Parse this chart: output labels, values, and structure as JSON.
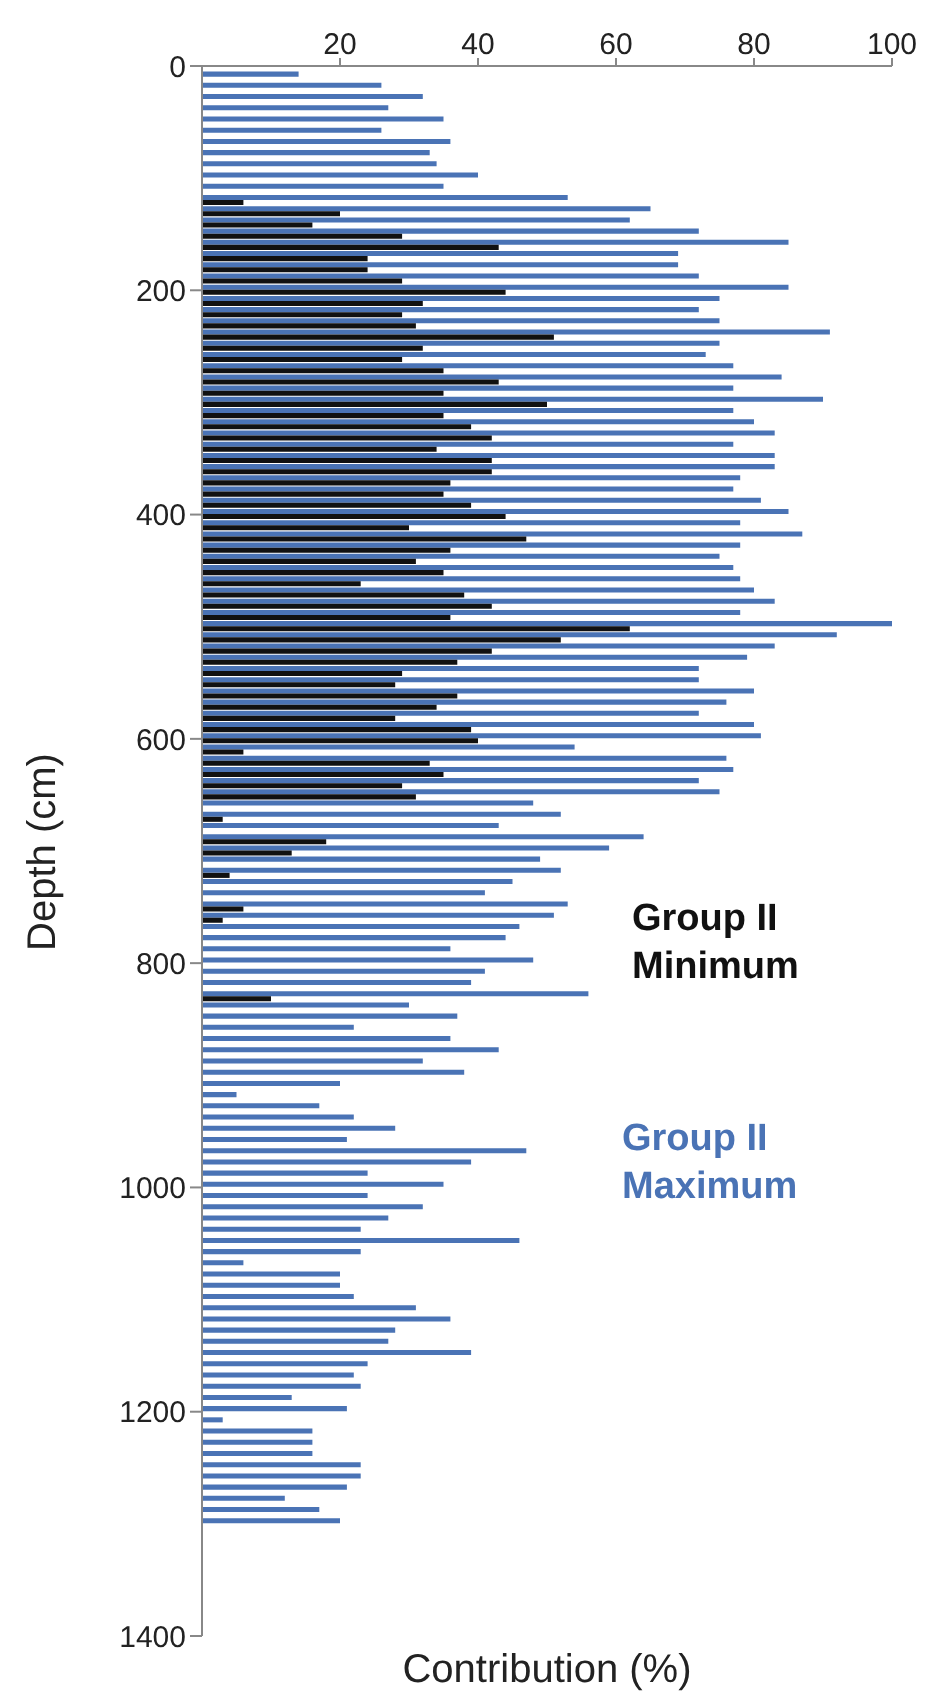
{
  "chart_data": {
    "type": "bar",
    "orientation": "horizontal",
    "xlabel": "Contribution (%)",
    "ylabel": "Depth (cm)",
    "x": [
      10,
      20,
      30,
      40,
      50,
      60,
      70,
      80,
      90,
      100,
      110,
      120,
      130,
      140,
      150,
      160,
      170,
      180,
      190,
      200,
      210,
      220,
      230,
      240,
      250,
      260,
      270,
      280,
      290,
      300,
      310,
      320,
      330,
      340,
      350,
      360,
      370,
      380,
      390,
      400,
      410,
      420,
      430,
      440,
      450,
      460,
      470,
      480,
      490,
      500,
      510,
      520,
      530,
      540,
      550,
      560,
      570,
      580,
      590,
      600,
      610,
      620,
      630,
      640,
      650,
      660,
      670,
      680,
      690,
      700,
      710,
      720,
      730,
      740,
      750,
      760,
      770,
      780,
      790,
      800,
      810,
      820,
      830,
      840,
      850,
      860,
      870,
      880,
      890,
      900,
      910,
      920,
      930,
      940,
      950,
      960,
      970,
      980,
      990,
      1000,
      1010,
      1020,
      1030,
      1040,
      1050,
      1060,
      1070,
      1080,
      1090,
      1100,
      1110,
      1120,
      1130,
      1140,
      1150,
      1160,
      1170,
      1180,
      1190,
      1200,
      1210,
      1220,
      1230,
      1240,
      1250,
      1260,
      1270,
      1280,
      1290,
      1300
    ],
    "series": [
      {
        "name": "Group II Maximum",
        "color": "#4a73b5",
        "values": [
          14,
          26,
          32,
          27,
          35,
          26,
          36,
          33,
          34,
          40,
          35,
          53,
          65,
          62,
          72,
          85,
          69,
          69,
          72,
          85,
          75,
          72,
          75,
          91,
          75,
          73,
          77,
          84,
          77,
          90,
          77,
          80,
          83,
          77,
          83,
          83,
          78,
          77,
          81,
          85,
          78,
          87,
          78,
          75,
          77,
          78,
          80,
          83,
          78,
          100,
          92,
          83,
          79,
          72,
          72,
          80,
          76,
          72,
          80,
          81,
          54,
          76,
          77,
          72,
          75,
          48,
          52,
          43,
          64,
          59,
          49,
          52,
          45,
          41,
          53,
          51,
          46,
          44,
          36,
          48,
          41,
          39,
          56,
          30,
          37,
          22,
          36,
          43,
          32,
          38,
          20,
          5,
          17,
          22,
          28,
          21,
          47,
          39,
          24,
          35,
          24,
          32,
          27,
          23,
          46,
          23,
          6,
          20,
          20,
          22,
          31,
          36,
          28,
          27,
          39,
          24,
          22,
          23,
          13,
          21,
          3,
          16,
          16,
          16,
          23,
          23,
          21,
          12,
          17,
          20
        ]
      },
      {
        "name": "Group II Minimum",
        "color": "#111111",
        "values": [
          null,
          null,
          null,
          null,
          null,
          null,
          null,
          null,
          null,
          null,
          null,
          6,
          20,
          16,
          29,
          43,
          24,
          24,
          29,
          44,
          32,
          29,
          31,
          51,
          32,
          29,
          35,
          43,
          35,
          50,
          35,
          39,
          42,
          34,
          42,
          42,
          36,
          35,
          39,
          44,
          30,
          47,
          36,
          31,
          35,
          23,
          38,
          42,
          36,
          62,
          52,
          42,
          37,
          29,
          28,
          37,
          34,
          28,
          39,
          40,
          6,
          33,
          35,
          29,
          31,
          null,
          3,
          null,
          18,
          13,
          null,
          4,
          null,
          null,
          6,
          3,
          null,
          null,
          null,
          null,
          null,
          null,
          10,
          null,
          null,
          null,
          null,
          null,
          null,
          null,
          null,
          null,
          null,
          null,
          null,
          null,
          null,
          null,
          null,
          null,
          null,
          null,
          null,
          null,
          null,
          null,
          null,
          null,
          null,
          null,
          null,
          null,
          null,
          null,
          null,
          null,
          null,
          null,
          null,
          null,
          null,
          null,
          null,
          null,
          null,
          null,
          null,
          null,
          null,
          null
        ]
      }
    ],
    "xlim": [
      0,
      100
    ],
    "xticks": [
      20,
      40,
      60,
      80,
      100
    ],
    "ylim": [
      1400,
      0
    ],
    "yticks": [
      0,
      200,
      400,
      600,
      800,
      1000,
      1200,
      1400
    ]
  }
}
